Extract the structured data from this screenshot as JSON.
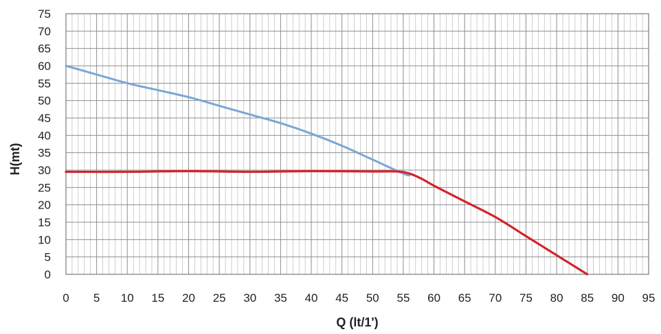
{
  "chart_data": {
    "type": "line",
    "title": "",
    "xlabel": "Q (lt/1')",
    "ylabel": "H(mt)",
    "xlim": [
      0,
      95
    ],
    "ylim": [
      0,
      75
    ],
    "x_ticks": [
      0,
      5,
      10,
      15,
      20,
      25,
      30,
      35,
      40,
      45,
      50,
      55,
      60,
      65,
      70,
      75,
      80,
      85,
      90,
      95
    ],
    "y_ticks": [
      0,
      5,
      10,
      15,
      20,
      25,
      30,
      35,
      40,
      45,
      50,
      55,
      60,
      65,
      70,
      75
    ],
    "x_tick_labels": [
      "0",
      "5",
      "10",
      "15",
      "20",
      "25",
      "30",
      "35",
      "40",
      "45",
      "50",
      "55",
      "60",
      "65",
      "70",
      "75",
      "80",
      "85",
      "90",
      "95"
    ],
    "y_tick_labels": [
      "0",
      "5",
      "10",
      "15",
      "20",
      "25",
      "30",
      "35",
      "40",
      "45",
      "50",
      "55",
      "60",
      "65",
      "70",
      "75"
    ],
    "grid": true,
    "minor_x_step": 1,
    "legend": "none",
    "series": [
      {
        "color": "#7aa6d6",
        "x": [
          0,
          5,
          10,
          15,
          20,
          25,
          30,
          35,
          40,
          45,
          50,
          55,
          56
        ],
        "y": [
          60,
          57.5,
          55,
          53,
          51,
          48.5,
          46,
          43.5,
          40.5,
          37,
          33,
          29,
          28.5
        ]
      },
      {
        "color": "#d2232a",
        "x": [
          0,
          10,
          20,
          30,
          40,
          50,
          54,
          56,
          58,
          60,
          65,
          70,
          75,
          80,
          85
        ],
        "y": [
          29.5,
          29.5,
          29.7,
          29.5,
          29.7,
          29.6,
          29.6,
          29,
          27.5,
          25.5,
          21,
          16.5,
          11,
          5.5,
          0
        ]
      }
    ]
  }
}
